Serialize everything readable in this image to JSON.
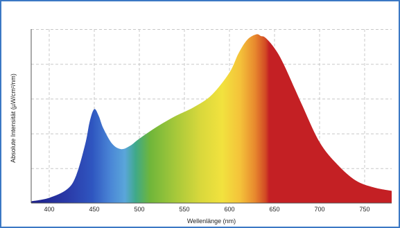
{
  "chart_data": {
    "type": "area",
    "title": "",
    "xlabel": "Wellenlänge (nm)",
    "ylabel": "Absolute Intensität (µW/cm²/nm)",
    "xlim": [
      380,
      780
    ],
    "ylim": [
      0,
      1
    ],
    "xticks": [
      400,
      450,
      500,
      550,
      600,
      650,
      700,
      750
    ],
    "xtick_labels": [
      "400",
      "450",
      "500",
      "550",
      "600",
      "650",
      "700",
      "750"
    ],
    "y_tick_labels_shown": false,
    "grid": true,
    "legend": "none",
    "fill": "visible-spectrum color gradient",
    "series": [
      {
        "x": [
          380,
          400,
          420,
          430,
          440,
          445,
          450,
          455,
          460,
          470,
          480,
          490,
          500,
          520,
          540,
          560,
          580,
          600,
          610,
          620,
          630,
          635,
          640,
          650,
          660,
          680,
          700,
          720,
          740,
          760,
          780
        ],
        "y": [
          0.01,
          0.03,
          0.08,
          0.16,
          0.34,
          0.47,
          0.54,
          0.5,
          0.43,
          0.34,
          0.31,
          0.33,
          0.37,
          0.44,
          0.5,
          0.55,
          0.62,
          0.75,
          0.86,
          0.94,
          0.97,
          0.96,
          0.95,
          0.89,
          0.8,
          0.57,
          0.35,
          0.22,
          0.13,
          0.09,
          0.07
        ]
      }
    ]
  }
}
